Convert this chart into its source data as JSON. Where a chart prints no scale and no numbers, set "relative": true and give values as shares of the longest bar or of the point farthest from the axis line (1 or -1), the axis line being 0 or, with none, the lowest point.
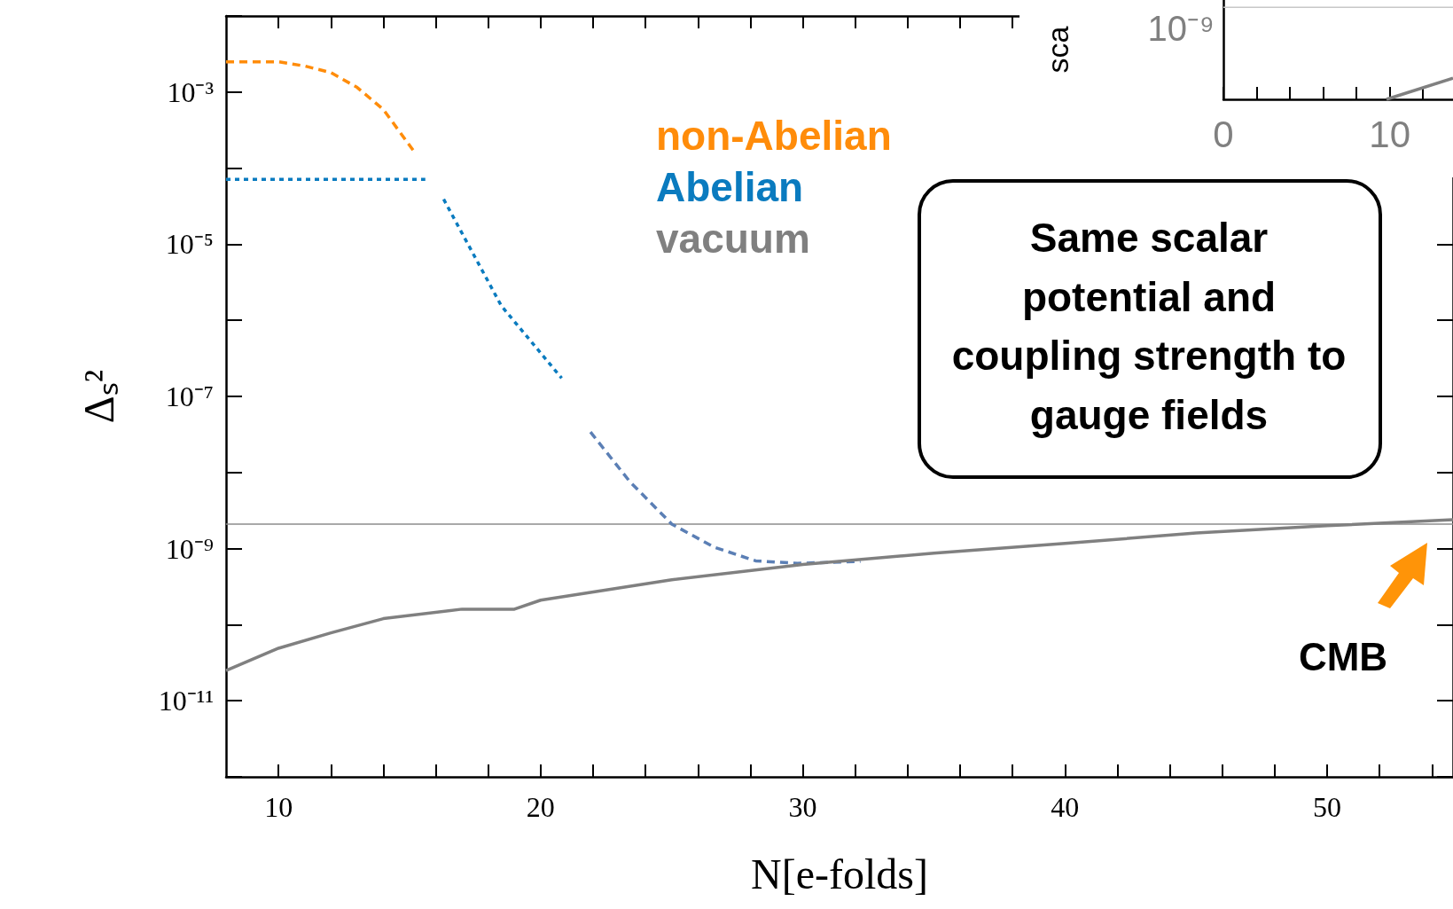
{
  "chart_data": [
    {
      "type": "line",
      "xlabel": "N[e-folds]",
      "ylabel": "Δₛ²",
      "log": "y",
      "grid": false,
      "legend": "top",
      "marker": "none",
      "xlim": [
        8,
        54.8
      ],
      "xticks": [
        10,
        {
          "value": 12,
          "label": null
        },
        {
          "value": 14,
          "label": null
        },
        {
          "value": 16,
          "label": null
        },
        {
          "value": 18,
          "label": null
        },
        20,
        {
          "value": 22,
          "label": null
        },
        {
          "value": 24,
          "label": null
        },
        {
          "value": 26,
          "label": null
        },
        {
          "value": 28,
          "label": null
        },
        30,
        {
          "value": 32,
          "label": null
        },
        {
          "value": 34,
          "label": null
        },
        {
          "value": 36,
          "label": null
        },
        {
          "value": 38,
          "label": null
        },
        40,
        {
          "value": 42,
          "label": null
        },
        {
          "value": 44,
          "label": null
        },
        {
          "value": 46,
          "label": null
        },
        {
          "value": 48,
          "label": null
        },
        50,
        {
          "value": 52,
          "label": null
        },
        {
          "value": 54,
          "label": null
        }
      ],
      "ylim": [
        1e-12,
        0.01
      ],
      "yticks": [
        {
          "value": 1e-11,
          "label": "10⁻¹¹"
        },
        {
          "value": 1e-09,
          "label": "10⁻⁹"
        },
        {
          "value": 1e-07,
          "label": "10⁻⁷"
        },
        {
          "value": 1e-05,
          "label": "10⁻⁵"
        },
        {
          "value": 0.001,
          "label": "10⁻³"
        }
      ],
      "series": [
        {
          "name": "non-Abelian",
          "color": "#ff8c0a",
          "line_style": "dashed",
          "x": [
            8,
            9,
            10,
            11,
            12,
            13,
            14,
            15.2
          ],
          "values": [
            0.0025,
            0.0025,
            0.0025,
            0.0022,
            0.0018,
            0.00115,
            0.00059,
            0.00016
          ]
        },
        {
          "name": "Abelian",
          "color": "#0a7bbf",
          "line_style": "dotted",
          "x": [
            8,
            10,
            12,
            14,
            15.6,
            16,
            16.3,
            18.5,
            20.8
          ],
          "values": [
            7.1e-05,
            7.1e-05,
            7.1e-05,
            7.1e-05,
            7.1e-05,
            null,
            3.9e-05,
            1.55e-06,
            1.74e-07
          ]
        },
        {
          "color": "#5b7fb5",
          "line_style": "dashed",
          "x": [
            21.9,
            23.4,
            25,
            26.6,
            28.2,
            29.8,
            32.2
          ],
          "values": [
            3.4e-08,
            7.6e-09,
            2.1e-09,
            1.05e-09,
            6.9e-10,
            6.4e-10,
            6.8e-10
          ]
        },
        {
          "name": "vacuum",
          "color": "#808080",
          "line_style": "solid",
          "x": [
            8,
            10,
            12,
            14,
            17,
            18,
            19,
            20,
            25,
            30,
            35,
            40,
            45,
            50,
            54.8
          ],
          "values": [
            2.5e-11,
            4.9e-11,
            7.8e-11,
            1.2e-10,
            1.6e-10,
            1.6e-10,
            1.6e-10,
            2.1e-10,
            3.9e-10,
            6.2e-10,
            8.7e-10,
            1.17e-09,
            1.6e-09,
            2e-09,
            2.4e-09
          ]
        }
      ],
      "ref_lines": [
        {
          "axis": "y",
          "value": 2.1e-09,
          "color": "#8c8c8c"
        }
      ],
      "annotations": [
        "Same scalar potential and coupling strength to gauge fields",
        "CMB"
      ]
    },
    {
      "type": "line",
      "ylabel": "sca",
      "relative": true,
      "grid": false,
      "marker": "none",
      "annotations": [
        "10⁻⁹"
      ],
      "xlim": [
        0,
        13.8
      ],
      "xticks": [
        0,
        {
          "value": 2,
          "label": null
        },
        {
          "value": 4,
          "label": null
        },
        {
          "value": 6,
          "label": null
        },
        {
          "value": 8,
          "label": null
        },
        10,
        {
          "value": 12,
          "label": null
        }
      ],
      "series": [
        {
          "color": "#808080",
          "line_style": "solid",
          "x": [
            9.8,
            13.8
          ],
          "values": [
            0,
            1
          ]
        }
      ],
      "ref_lines": [
        {
          "axis": "y",
          "value": 4.33,
          "color": "#c8c8c8"
        }
      ]
    }
  ]
}
